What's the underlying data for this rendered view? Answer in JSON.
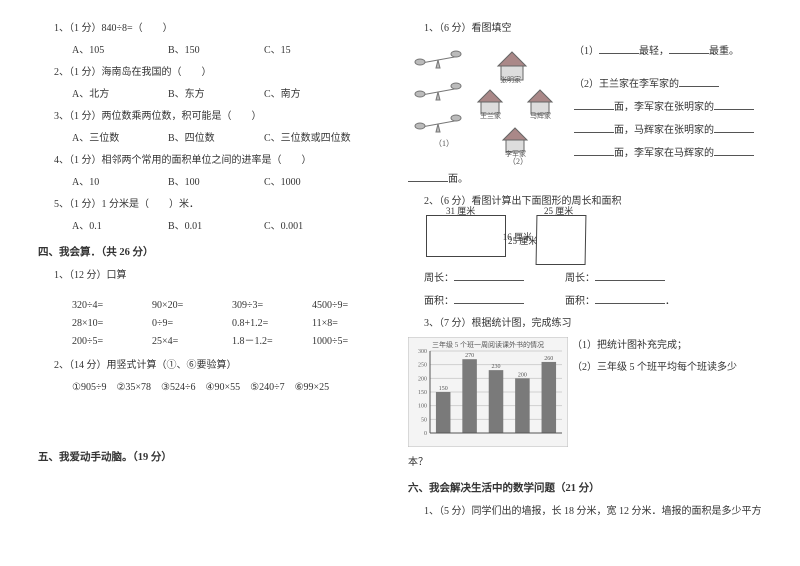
{
  "left": {
    "q1": {
      "stem": "1、（1 分）840÷8=（　　）",
      "a": "A、105",
      "b": "B、150",
      "c": "C、15"
    },
    "q2": {
      "stem": "2、（1 分）海南岛在我国的（　　）",
      "a": "A、北方",
      "b": "B、东方",
      "c": "C、南方"
    },
    "q3": {
      "stem": "3、（1 分）两位数乘两位数，积可能是（　　）",
      "a": "A、三位数",
      "b": "B、四位数",
      "c": "C、三位数或四位数"
    },
    "q4": {
      "stem": "4、（1 分）相邻两个常用的面积单位之间的进率是（　　）",
      "a": "A、10",
      "b": "B、100",
      "c": "C、1000"
    },
    "q5": {
      "stem": "5、（1 分）1 分米是（　　）米．",
      "a": "A、0.1",
      "b": "B、0.01",
      "c": "C、0.001"
    },
    "sec4": "四、我会算．（共 26 分）",
    "s4q1": "1、（12 分）口算",
    "calc": {
      "r1c1": "320÷4=",
      "r1c2": "90×20=",
      "r1c3": "309÷3=",
      "r1c4": "4500÷9=",
      "r2c1": "28×10=",
      "r2c2": "0÷9=",
      "r2c3": "0.8+1.2=",
      "r2c4": "11×8=",
      "r3c1": "200÷5=",
      "r3c2": "25×4=",
      "r3c3": "1.8－1.2=",
      "r3c4": "1000÷5="
    },
    "s4q2": "2、（14 分）用竖式计算（①、⑥要验算）",
    "s4q2items": "①905÷9　②35×78　③524÷6　④90×55　⑤240÷7　⑥99×25",
    "sec5": "五、我爱动手动脑。（19 分）"
  },
  "right": {
    "q1": "1、（6 分）看图填空",
    "q1r1a": "（1）",
    "q1r1b": "最轻，",
    "q1r1c": "最重。",
    "q1r2a": "（2）王兰家在李军家的",
    "q1r2b": "面，李军家在张明家的",
    "q1r2c": "面，马辉家在张明家的",
    "q1r2d": "面，李军家在马辉家的",
    "q1r2e": "面。",
    "q2": "2、（6 分）看图计算出下面图形的周长和面积",
    "rect1_top": "31 厘米",
    "rect1_right": "16 厘米",
    "rect2_top": "25 厘米",
    "rect2_left": "25 厘米",
    "zhou": "周长：",
    "mian": "面积：",
    "dot": "．",
    "q3": "3、（7 分）根据统计图，完成练习",
    "q3a": "（1）把统计图补充完成；",
    "q3b": "（2）三年级 5 个班平均每个班读多少",
    "q3b2": "本？",
    "chart": {
      "title": "三年级 5 个班一周阅读课外书的情况",
      "bars": [
        150,
        270,
        230,
        200,
        260
      ],
      "ymax": 300,
      "bar_color": "#7a7a7a",
      "grid_color": "#cfcfcf",
      "bg": "#f4f4f4"
    },
    "sec6": "六、我会解决生活中的数学问题（21 分）",
    "s6q1": "1、（5 分）同学们出的墙报，长 18 分米，宽 12 分米．墙报的面积是多少平方"
  }
}
